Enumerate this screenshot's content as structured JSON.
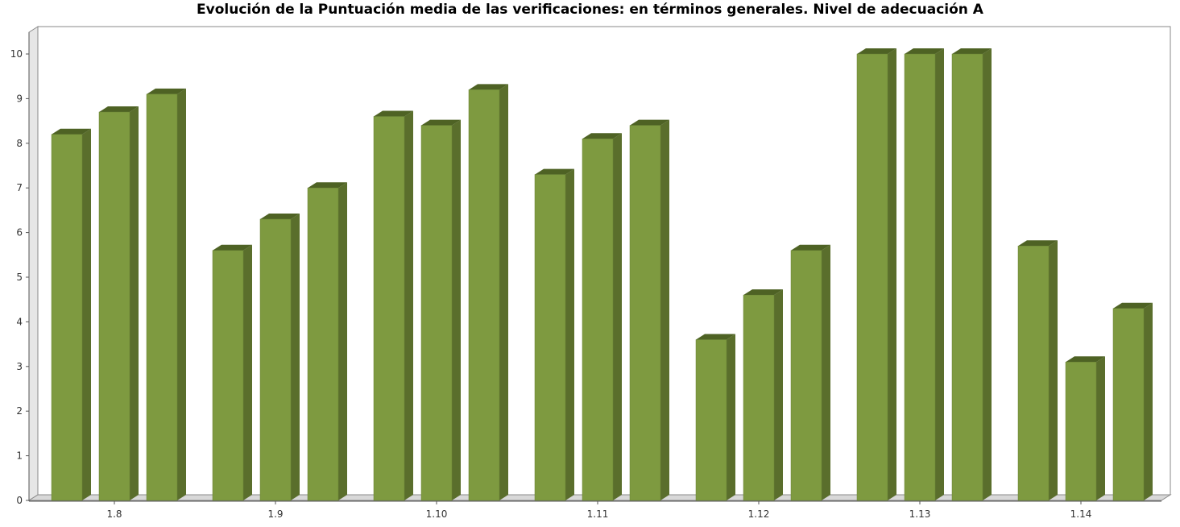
{
  "chart_data": {
    "type": "bar",
    "title": "Evolución de la Puntuación media de las verificaciones: en términos generales. Nivel de adecuación A",
    "xlabel": "",
    "ylabel": "",
    "categories": [
      "1.8",
      "1.9",
      "1.10",
      "1.11",
      "1.12",
      "1.13",
      "1.14"
    ],
    "series": [
      {
        "values": [
          8.2,
          5.6,
          8.6,
          7.3,
          3.6,
          10,
          5.7
        ]
      },
      {
        "values": [
          8.7,
          6.3,
          8.4,
          8.1,
          4.6,
          10,
          3.1
        ]
      },
      {
        "values": [
          9.1,
          7.0,
          9.2,
          8.4,
          5.6,
          10,
          4.3
        ]
      }
    ],
    "ylim": [
      0,
      10
    ],
    "yticks": [
      "0",
      "1",
      "2",
      "3",
      "4",
      "5",
      "6",
      "7",
      "8",
      "9",
      "10"
    ],
    "grid": false,
    "legend": "none",
    "colors": {
      "bar_front": "#7e9a40",
      "bar_side": "#5a6e2c",
      "bar_top": "#4e6224",
      "frame": "#888888",
      "floor": "#d8d8d8"
    }
  }
}
